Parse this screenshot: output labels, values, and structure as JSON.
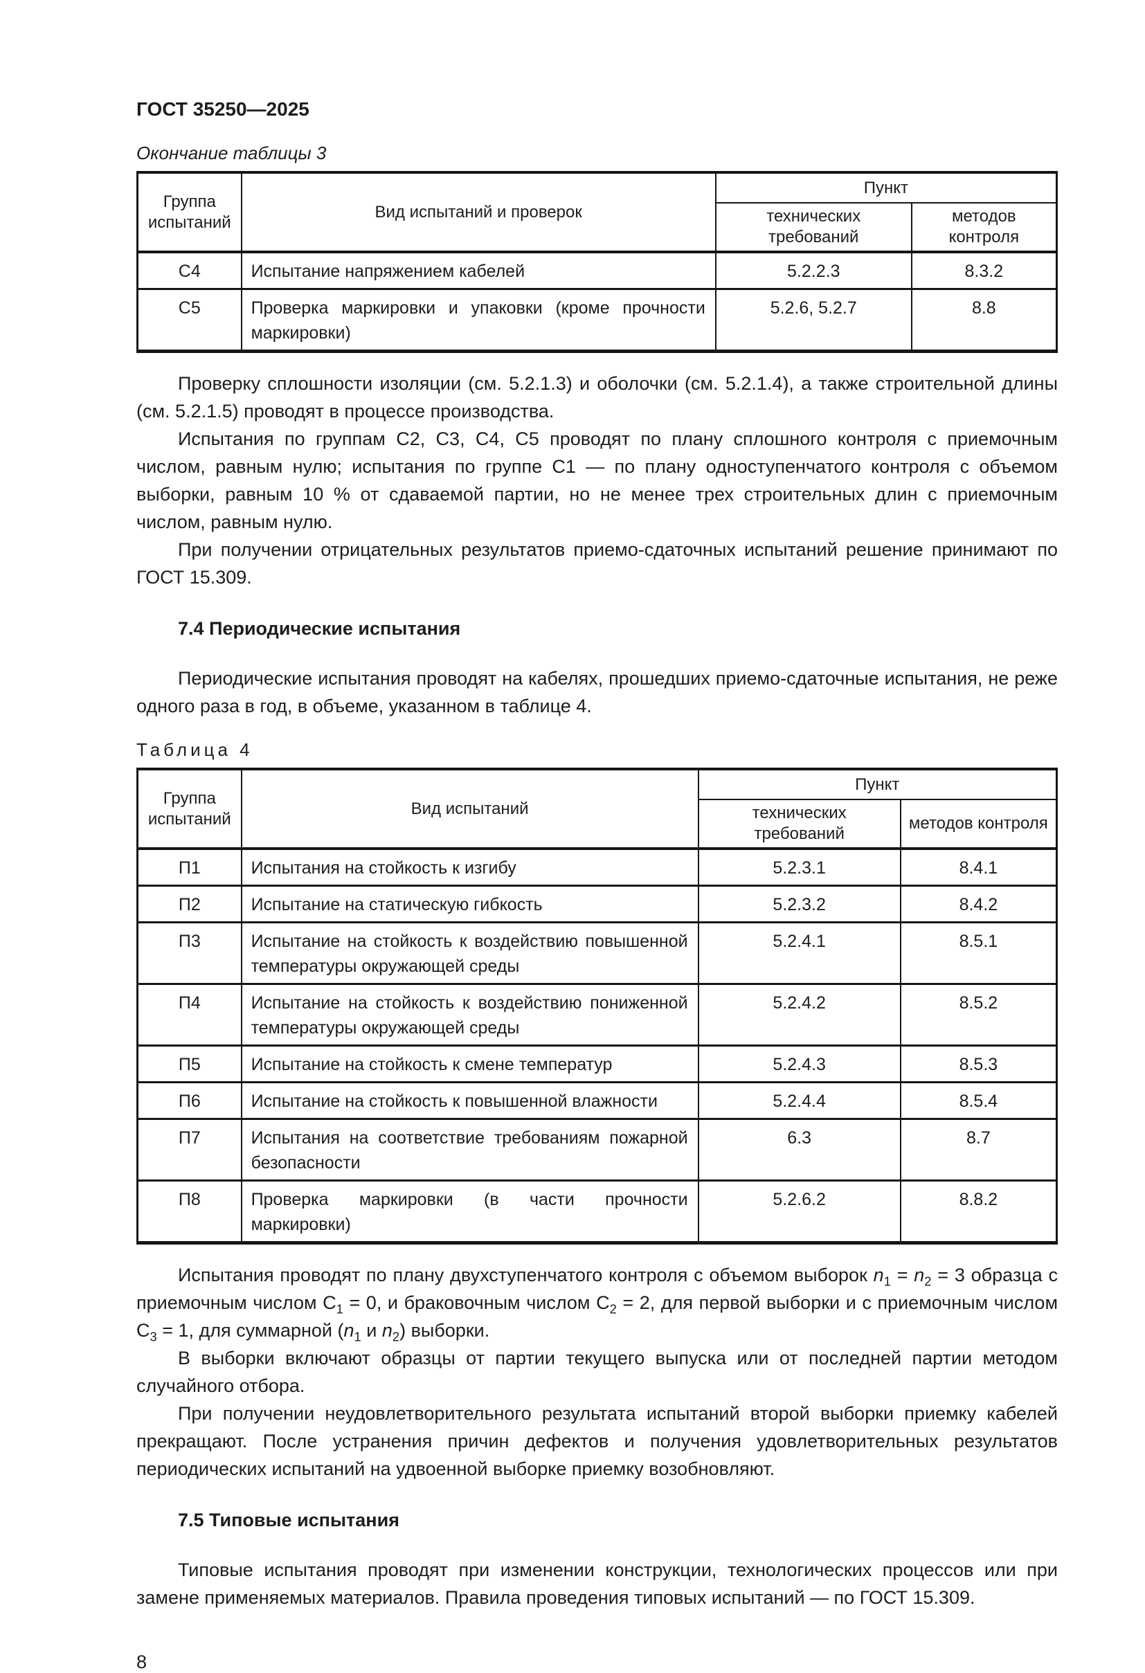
{
  "page": {
    "doc_number": "ГОСТ 35250—2025",
    "page_number": "8"
  },
  "table3": {
    "caption": "Окончание таблицы 3",
    "headers": {
      "group": "Группа испытаний",
      "kind": "Вид испытаний и проверок",
      "punkt": "Пункт",
      "tech": "технических требований",
      "methods": "методов контроля"
    },
    "rows": [
      {
        "group": "С4",
        "kind": "Испытание напряжением кабелей",
        "tech": "5.2.2.3",
        "methods": "8.3.2"
      },
      {
        "group": "С5",
        "kind": "Проверка маркировки и упаковки (кроме прочности маркировки)",
        "tech": "5.2.6, 5.2.7",
        "methods": "8.8"
      }
    ]
  },
  "after_table3": {
    "p1": "Проверку сплошности изоляции (см. 5.2.1.3) и оболочки (см. 5.2.1.4), а также строительной длины (см. 5.2.1.5) проводят в процессе производства.",
    "p2": "Испытания по группам С2, С3, С4, С5 проводят по плану сплошного контроля с приемочным числом, равным нулю; испытания по группе С1 — по плану одноступенчатого контроля с объемом выборки, равным 10 % от сдаваемой партии, но не менее трех строительных длин с приемочным числом, равным нулю.",
    "p3": "При получении отрицательных результатов приемо-сдаточных испытаний решение принимают по ГОСТ 15.309."
  },
  "section_7_4": {
    "title": "7.4 Периодические испытания",
    "intro": "Периодические испытания проводят на кабелях, прошедших приемо-сдаточные испытания, не реже одного раза в год, в объеме, указанном в таблице 4."
  },
  "table4": {
    "caption": "Таблица 4",
    "headers": {
      "group": "Группа испытаний",
      "kind": "Вид испытаний",
      "punkt": "Пункт",
      "tech": "технических требований",
      "methods": "методов контроля"
    },
    "rows": [
      {
        "group": "П1",
        "kind": "Испытания на стойкость к изгибу",
        "tech": "5.2.3.1",
        "methods": "8.4.1"
      },
      {
        "group": "П2",
        "kind": "Испытание на статическую гибкость",
        "tech": "5.2.3.2",
        "methods": "8.4.2"
      },
      {
        "group": "П3",
        "kind": "Испытание на стойкость к воздействию повышенной температуры окружающей среды",
        "tech": "5.2.4.1",
        "methods": "8.5.1"
      },
      {
        "group": "П4",
        "kind": "Испытание на стойкость к воздействию пониженной температуры окружающей среды",
        "tech": "5.2.4.2",
        "methods": "8.5.2"
      },
      {
        "group": "П5",
        "kind": "Испытание на стойкость к смене температур",
        "tech": "5.2.4.3",
        "methods": "8.5.3"
      },
      {
        "group": "П6",
        "kind": "Испытание на стойкость к повышенной влажности",
        "tech": "5.2.4.4",
        "methods": "8.5.4"
      },
      {
        "group": "П7",
        "kind": "Испытания на соответствие требованиям пожарной безопасности",
        "tech": "6.3",
        "methods": "8.7"
      },
      {
        "group": "П8",
        "kind": "Проверка маркировки (в части прочности маркировки)",
        "tech": "5.2.6.2",
        "methods": "8.8.2"
      }
    ]
  },
  "after_table4": {
    "p1_segments": [
      {
        "t": "Испытания проводят по плану двухступенчатого контроля с объемом выборок ",
        "s": "plain"
      },
      {
        "t": "n",
        "s": "italic"
      },
      {
        "t": "1",
        "s": "sub"
      },
      {
        "t": " = ",
        "s": "plain"
      },
      {
        "t": "n",
        "s": "italic"
      },
      {
        "t": "2",
        "s": "sub"
      },
      {
        "t": " = 3 образца с приемочным числом С",
        "s": "plain"
      },
      {
        "t": "1",
        "s": "sub"
      },
      {
        "t": " = 0, и браковочным числом С",
        "s": "plain"
      },
      {
        "t": "2",
        "s": "sub"
      },
      {
        "t": " = 2, для первой выборки и с приемочным числом С",
        "s": "plain"
      },
      {
        "t": "3",
        "s": "sub"
      },
      {
        "t": " = 1, для суммарной (",
        "s": "plain"
      },
      {
        "t": "n",
        "s": "italic"
      },
      {
        "t": "1",
        "s": "sub"
      },
      {
        "t": " и ",
        "s": "plain"
      },
      {
        "t": "n",
        "s": "italic"
      },
      {
        "t": "2",
        "s": "sub"
      },
      {
        "t": ") выборки.",
        "s": "plain"
      }
    ],
    "p2": "В выборки включают образцы от партии текущего выпуска или от последней партии методом случайного отбора.",
    "p3": "При получении неудовлетворительного результата испытаний второй выборки приемку кабелей прекращают. После устранения причин дефектов и получения удовлетворительных результатов периодических испытаний на удвоенной выборке приемку возобновляют."
  },
  "section_7_5": {
    "title": "7.5 Типовые испытания",
    "body": "Типовые испытания проводят при изменении конструкции, технологических процессов или при замене применяемых материалов. Правила проведения типовых испытаний — по ГОСТ 15.309."
  }
}
